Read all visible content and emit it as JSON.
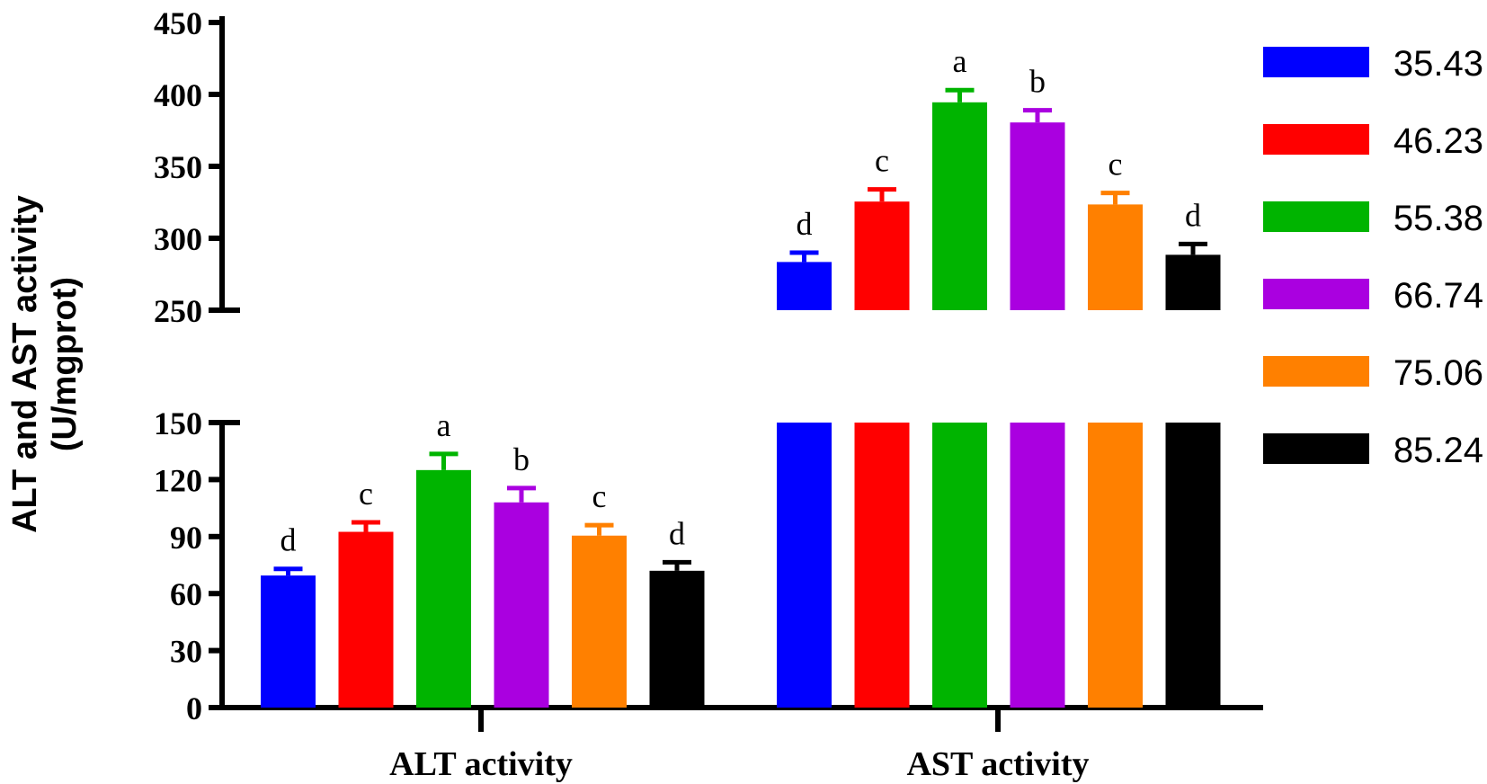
{
  "chart_data": {
    "type": "bar",
    "ylabel": [
      "ALT  and AST activity",
      "(U/mgprot)"
    ],
    "categories": [
      "ALT activity",
      "AST activity"
    ],
    "axis": {
      "broken": true,
      "lower_range": [
        0,
        150
      ],
      "upper_range": [
        250,
        450
      ],
      "lower_ticks": [
        "0",
        "30",
        "60",
        "90",
        "120",
        "150"
      ],
      "upper_ticks": [
        "250",
        "300",
        "350",
        "400",
        "450"
      ]
    },
    "series": [
      {
        "name": "35.43",
        "color": "#0000ff",
        "values": [
          69.5,
          283.5
        ],
        "errors": [
          3.5,
          6.5
        ],
        "letters": [
          "d",
          "d"
        ]
      },
      {
        "name": "46.23",
        "color": "#ff0000",
        "values": [
          92.5,
          325.5
        ],
        "errors": [
          5.0,
          8.5
        ],
        "letters": [
          "c",
          "c"
        ]
      },
      {
        "name": "55.38",
        "color": "#00b400",
        "values": [
          125.0,
          394.5
        ],
        "errors": [
          8.5,
          8.5
        ],
        "letters": [
          "a",
          "a"
        ]
      },
      {
        "name": "66.74",
        "color": "#aa00e0",
        "values": [
          108.0,
          380.5
        ],
        "errors": [
          7.5,
          8.5
        ],
        "letters": [
          "b",
          "b"
        ]
      },
      {
        "name": "75.06",
        "color": "#ff8000",
        "values": [
          90.5,
          323.5
        ],
        "errors": [
          5.5,
          8.0
        ],
        "letters": [
          "c",
          "c"
        ]
      },
      {
        "name": "85.24",
        "color": "#000000",
        "values": [
          72.0,
          288.5
        ],
        "errors": [
          4.5,
          7.5
        ],
        "letters": [
          "d",
          "d"
        ]
      }
    ],
    "legend_position": "right",
    "grid": false
  }
}
